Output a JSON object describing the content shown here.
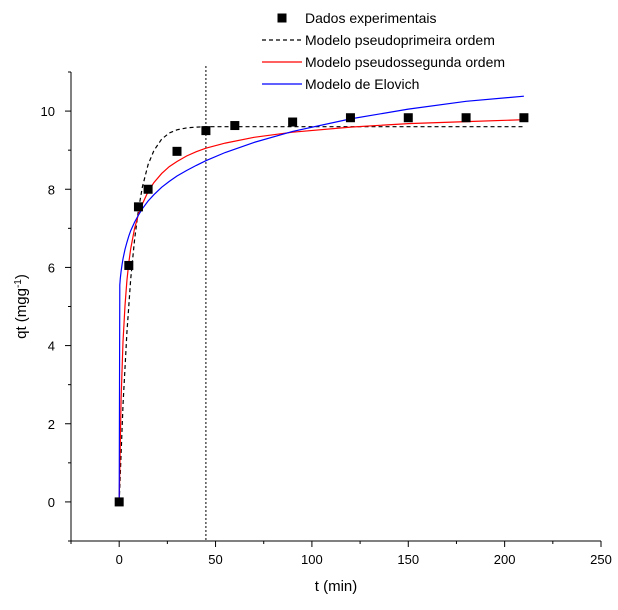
{
  "chart_data": {
    "type": "scatter",
    "title": "",
    "xlabel": "t (min)",
    "ylabel": {
      "base": "qt (mgg",
      "sup": "-1",
      "close": ")"
    },
    "xlim": [
      -25,
      250
    ],
    "ylim": [
      -1,
      11
    ],
    "xticks": [
      0,
      50,
      100,
      150,
      200,
      250
    ],
    "yticks": [
      0,
      2,
      4,
      6,
      8,
      10
    ],
    "grid": false,
    "legend_position": "top",
    "reference_line": {
      "x": 45,
      "style": "dotted",
      "color": "#000000"
    },
    "series": [
      {
        "name": "Dados experimentais",
        "kind": "markers",
        "color": "#000000",
        "x": [
          0,
          5,
          10,
          15,
          30,
          45,
          60,
          90,
          120,
          150,
          180,
          210
        ],
        "y": [
          0,
          6.05,
          7.55,
          8.0,
          8.97,
          9.5,
          9.63,
          9.72,
          9.83,
          9.83,
          9.83,
          9.83
        ]
      },
      {
        "name": "Modelo pseudoprimeira ordem",
        "kind": "line",
        "style": "dashed",
        "color": "#000000",
        "x": [
          0,
          2,
          4,
          6,
          8,
          10,
          12,
          15,
          18,
          22,
          26,
          30,
          35,
          40,
          45,
          55,
          70,
          90,
          120,
          150,
          180,
          210
        ],
        "y": [
          0,
          2.48,
          4.33,
          5.7,
          6.72,
          7.48,
          8.05,
          8.63,
          8.99,
          9.28,
          9.44,
          9.52,
          9.57,
          9.59,
          9.6,
          9.6,
          9.6,
          9.6,
          9.6,
          9.6,
          9.6,
          9.6
        ]
      },
      {
        "name": "Modelo pseudossegunda ordem",
        "kind": "line",
        "style": "solid",
        "color": "#ff0000",
        "x": [
          0,
          1,
          2,
          3,
          4,
          5,
          6,
          8,
          10,
          12,
          15,
          18,
          22,
          26,
          30,
          35,
          40,
          45,
          55,
          70,
          90,
          120,
          150,
          180,
          210
        ],
        "y": [
          0,
          2.64,
          4.1,
          5.02,
          5.66,
          6.12,
          6.48,
          7.0,
          7.36,
          7.62,
          7.94,
          8.17,
          8.4,
          8.58,
          8.71,
          8.85,
          8.96,
          9.05,
          9.18,
          9.33,
          9.46,
          9.59,
          9.68,
          9.73,
          9.78
        ]
      },
      {
        "name": "Modelo de Elovich",
        "kind": "line",
        "style": "solid",
        "color": "#0000ff",
        "x": [
          0,
          0.3,
          0.6,
          1,
          1.5,
          2,
          3,
          4,
          5,
          6,
          8,
          10,
          12,
          15,
          18,
          22,
          26,
          30,
          35,
          40,
          45,
          55,
          70,
          90,
          120,
          150,
          180,
          210
        ],
        "y": [
          0,
          5.55,
          5.72,
          5.9,
          6.08,
          6.22,
          6.46,
          6.64,
          6.8,
          6.94,
          7.16,
          7.34,
          7.5,
          7.7,
          7.86,
          8.05,
          8.2,
          8.34,
          8.48,
          8.61,
          8.73,
          8.94,
          9.2,
          9.48,
          9.8,
          10.05,
          10.25,
          10.38
        ]
      }
    ]
  }
}
